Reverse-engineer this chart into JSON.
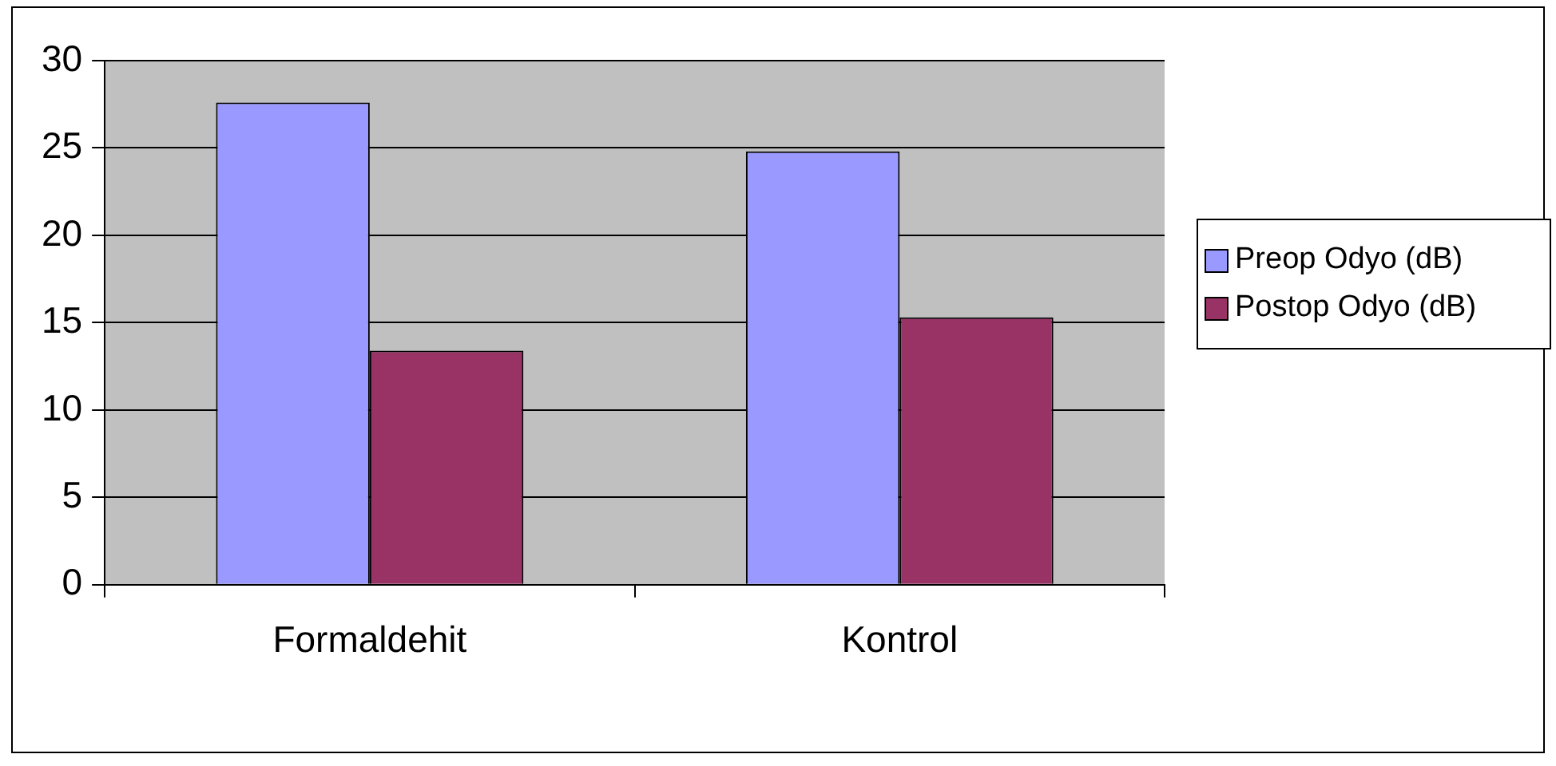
{
  "chart_data": {
    "type": "bar",
    "categories": [
      "Formaldehit",
      "Kontrol"
    ],
    "series": [
      {
        "name": "Preop Odyo (dB)",
        "color": "#9999ff",
        "values": [
          27.6,
          24.8
        ]
      },
      {
        "name": "Postop Odyo (dB)",
        "color": "#993366",
        "values": [
          13.4,
          15.3
        ]
      }
    ],
    "ylim": [
      0,
      30
    ],
    "yticks": [
      0,
      5,
      10,
      15,
      20,
      25,
      30
    ],
    "grid": "y",
    "legend": "right"
  }
}
